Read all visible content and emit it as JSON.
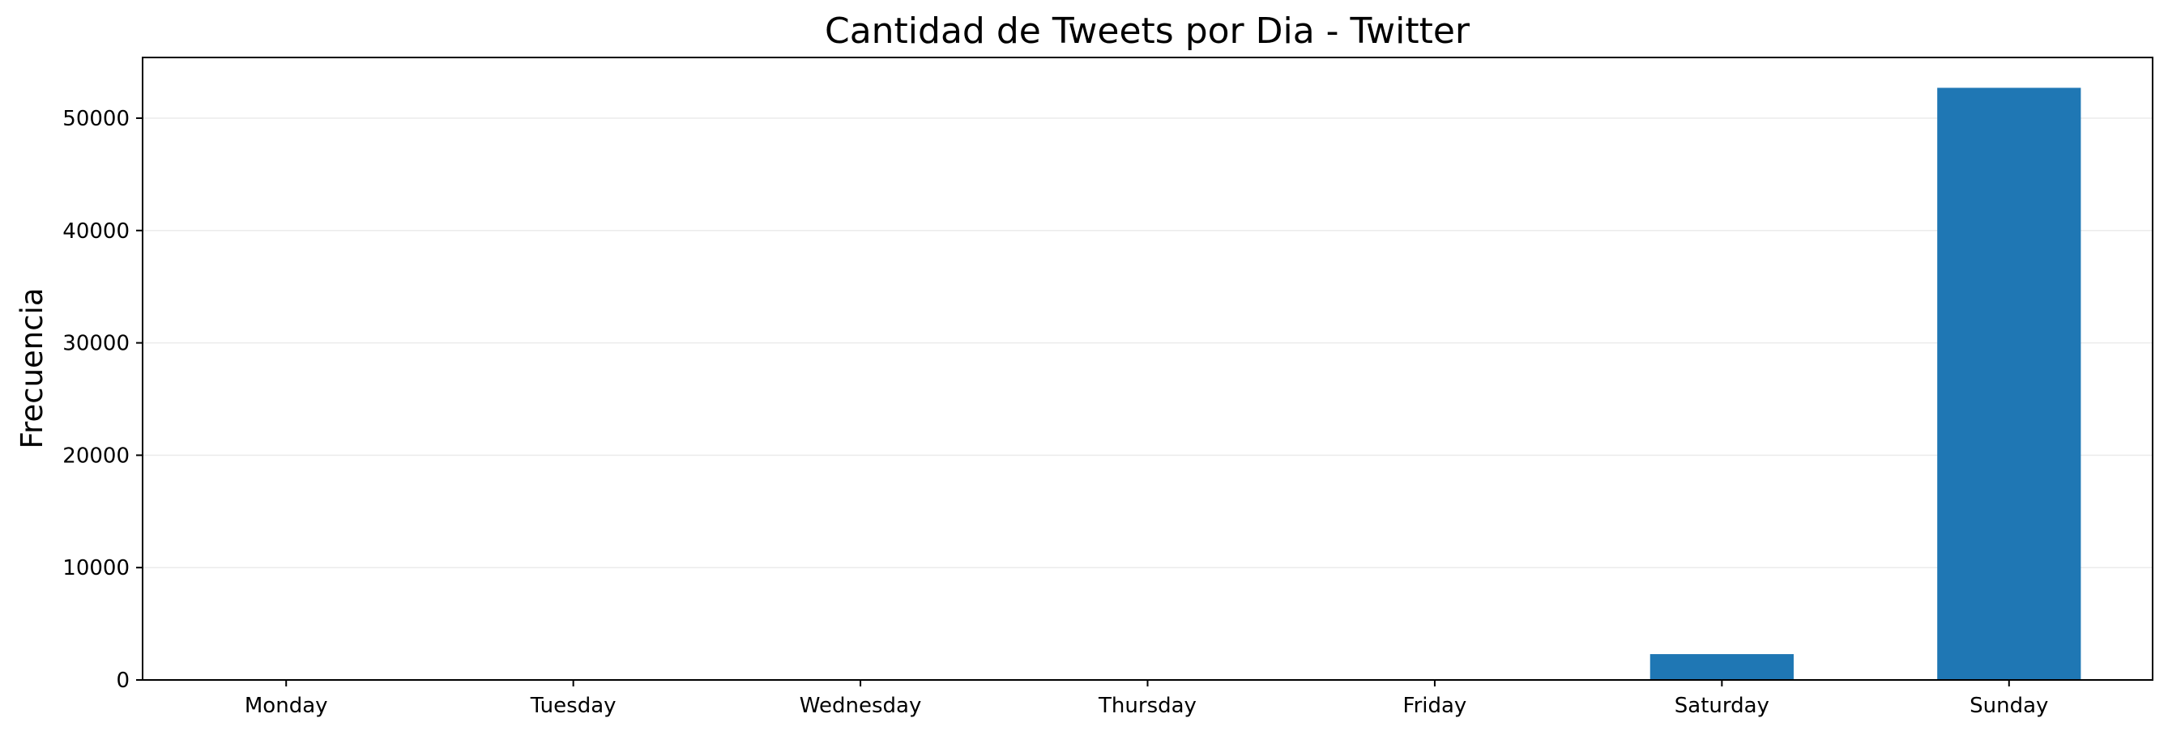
{
  "chart_data": {
    "type": "bar",
    "title": "Cantidad de Tweets por Dia - Twitter",
    "xlabel": "",
    "ylabel": "Frecuencia",
    "categories": [
      "Monday",
      "Tuesday",
      "Wednesday",
      "Thursday",
      "Friday",
      "Saturday",
      "Sunday"
    ],
    "values": [
      0,
      0,
      0,
      0,
      0,
      2300,
      52700
    ],
    "ylim": [
      0,
      55400
    ],
    "yticks": [
      0,
      10000,
      20000,
      30000,
      40000,
      50000
    ],
    "ytick_labels": [
      "0",
      "10000",
      "20000",
      "30000",
      "40000",
      "50000"
    ],
    "grid": "y",
    "legend": "none",
    "bar_color": "#1f77b4",
    "grid_color": "#ebebeb"
  }
}
